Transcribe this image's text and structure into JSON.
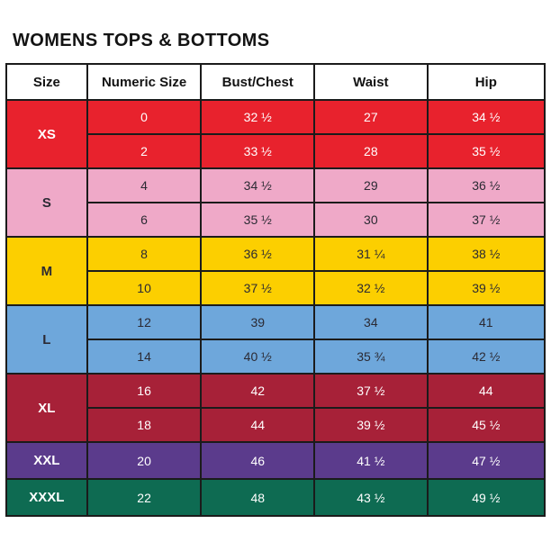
{
  "title": "WOMENS TOPS & BOTTOMS",
  "colors": {
    "border": "#1b1b1b",
    "header_bg": "#ffffff",
    "header_text": "#131313",
    "dark_row_text": "#2b2a33",
    "light_row_text": "#ffffff"
  },
  "table": {
    "columns": [
      "Size",
      "Numeric Size",
      "Bust/Chest",
      "Waist",
      "Hip"
    ],
    "groups": [
      {
        "size": "XS",
        "bg": "#e8222d",
        "fg": "#ffffff",
        "rows": [
          [
            "0",
            "32 ½",
            "27",
            "34 ½"
          ],
          [
            "2",
            "33 ½",
            "28",
            "35 ½"
          ]
        ]
      },
      {
        "size": "S",
        "bg": "#efa9c8",
        "fg": "#2b2a33",
        "rows": [
          [
            "4",
            "34 ½",
            "29",
            "36 ½"
          ],
          [
            "6",
            "35 ½",
            "30",
            "37 ½"
          ]
        ]
      },
      {
        "size": "M",
        "bg": "#fccf00",
        "fg": "#2b2a33",
        "rows": [
          [
            "8",
            "36 ½",
            "31 ¼",
            "38 ½"
          ],
          [
            "10",
            "37 ½",
            "32 ½",
            "39 ½"
          ]
        ]
      },
      {
        "size": "L",
        "bg": "#6ea7db",
        "fg": "#2b2a33",
        "rows": [
          [
            "12",
            "39",
            "34",
            "41"
          ],
          [
            "14",
            "40 ½",
            "35 ¾",
            "42 ½"
          ]
        ]
      },
      {
        "size": "XL",
        "bg": "#a72138",
        "fg": "#ffffff",
        "rows": [
          [
            "16",
            "42",
            "37 ½",
            "44"
          ],
          [
            "18",
            "44",
            "39 ½",
            "45 ½"
          ]
        ]
      },
      {
        "size": "XXL",
        "bg": "#5b3b8c",
        "fg": "#ffffff",
        "rows": [
          [
            "20",
            "46",
            "41 ½",
            "47 ½"
          ]
        ]
      },
      {
        "size": "XXXL",
        "bg": "#0e6b52",
        "fg": "#ffffff",
        "rows": [
          [
            "22",
            "48",
            "43 ½",
            "49 ½"
          ]
        ]
      }
    ]
  }
}
